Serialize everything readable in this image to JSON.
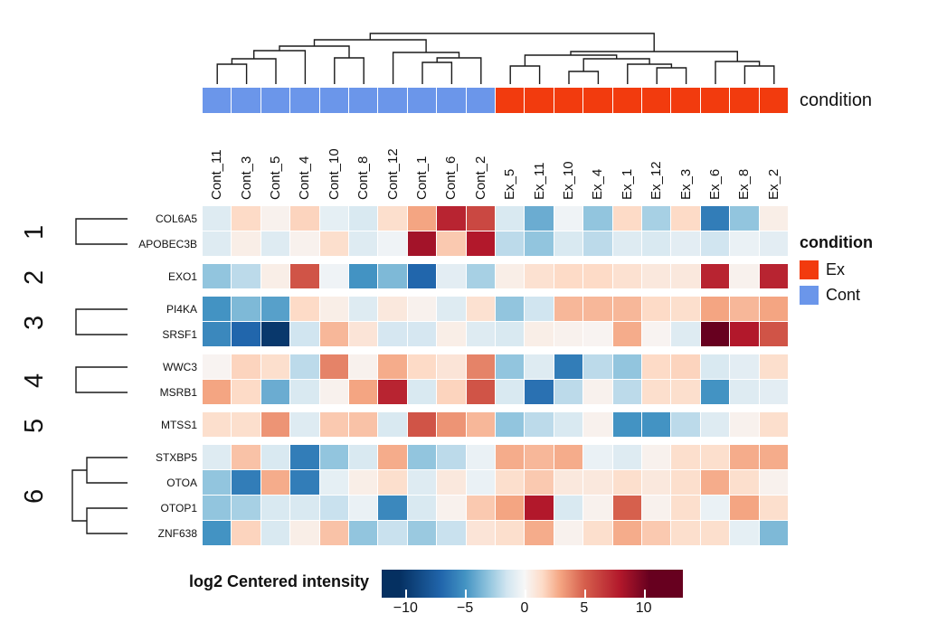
{
  "chart_data": {
    "type": "heatmap",
    "annotation_row_label": "condition",
    "columns": [
      "Cont_11",
      "Cont_3",
      "Cont_5",
      "Cont_4",
      "Cont_10",
      "Cont_8",
      "Cont_12",
      "Cont_1",
      "Cont_6",
      "Cont_2",
      "Ex_5",
      "Ex_11",
      "Ex_10",
      "Ex_4",
      "Ex_1",
      "Ex_12",
      "Ex_3",
      "Ex_6",
      "Ex_8",
      "Ex_2"
    ],
    "column_conditions": [
      "Cont",
      "Cont",
      "Cont",
      "Cont",
      "Cont",
      "Cont",
      "Cont",
      "Cont",
      "Cont",
      "Cont",
      "Ex",
      "Ex",
      "Ex",
      "Ex",
      "Ex",
      "Ex",
      "Ex",
      "Ex",
      "Ex",
      "Ex"
    ],
    "row_clusters": [
      {
        "id": "1",
        "genes": [
          "COL6A5",
          "APOBEC3B"
        ]
      },
      {
        "id": "2",
        "genes": [
          "EXO1"
        ]
      },
      {
        "id": "3",
        "genes": [
          "PI4KA",
          "SRSF1"
        ]
      },
      {
        "id": "4",
        "genes": [
          "WWC3",
          "MSRB1"
        ]
      },
      {
        "id": "5",
        "genes": [
          "MTSS1"
        ]
      },
      {
        "id": "6",
        "genes": [
          "STXBP5",
          "OTOA",
          "OTOP1",
          "ZNF638"
        ]
      }
    ],
    "values": {
      "COL6A5": [
        -1,
        1.5,
        0.3,
        1.7,
        -0.7,
        -1.2,
        1.3,
        3,
        7.5,
        6,
        -1.2,
        -4,
        -0.3,
        -3,
        1.5,
        -2.5,
        1.5,
        -6,
        -3,
        0.5
      ],
      "APOBEC3B": [
        -1,
        0.5,
        -1,
        0.3,
        1.3,
        -1,
        -0.3,
        8.5,
        2,
        8,
        -2,
        -3,
        -1.2,
        -2,
        -1,
        -1.2,
        -0.8,
        -1.5,
        -0.5,
        -0.8
      ],
      "EXO1": [
        -3,
        -2,
        0.5,
        5.5,
        -0.3,
        -5,
        -3.5,
        -7,
        -0.8,
        -2.5,
        0.5,
        1.2,
        1.5,
        1.5,
        1.2,
        0.8,
        0.8,
        7.5,
        0.3,
        7.5
      ],
      "PI4KA": [
        -5,
        -3.5,
        -4.5,
        1.5,
        0.5,
        -1,
        0.8,
        0.3,
        -1,
        1.2,
        -3,
        -1.5,
        2.5,
        2.5,
        2.5,
        1.5,
        1.3,
        3,
        2.5,
        3
      ],
      "SRSF1": [
        -5.5,
        -7,
        -10,
        -1.5,
        2.5,
        1,
        -1.3,
        -1.3,
        0.5,
        -1,
        -1.2,
        0.5,
        0.3,
        0.2,
        2.8,
        0.2,
        -1,
        10.5,
        8,
        5.5
      ],
      "WWC3": [
        0.2,
        1.7,
        1.3,
        -2,
        4,
        0.3,
        2.8,
        1.5,
        1,
        4,
        -3,
        -1,
        -6,
        -2,
        -3,
        1.5,
        1.7,
        -1.2,
        -0.8,
        1.3
      ],
      "MSRB1": [
        3,
        1.5,
        -4,
        -1.2,
        0.3,
        3,
        7.5,
        -1.2,
        1.7,
        5.5,
        -1.2,
        -6.5,
        -2,
        0.3,
        -2,
        1.3,
        1.3,
        -5,
        -1,
        -0.8
      ],
      "MTSS1": [
        1.3,
        1.3,
        3.5,
        -1,
        2,
        2.2,
        -1.2,
        5.5,
        3.5,
        2.5,
        -3,
        -2,
        -1.2,
        0.3,
        -5,
        -5,
        -2,
        -1,
        0.3,
        1.3
      ],
      "STXBP5": [
        -1,
        2.2,
        -1.2,
        -6,
        -3,
        -1.2,
        2.8,
        -3,
        -2,
        -0.5,
        2.8,
        2.5,
        2.8,
        -0.5,
        -1,
        0.3,
        1.3,
        1.3,
        2.8,
        2.8
      ],
      "OTOA": [
        -3,
        -6,
        2.8,
        -6,
        -0.7,
        0.5,
        1.3,
        -1,
        0.8,
        -0.5,
        1.3,
        2,
        0.8,
        0.8,
        1.3,
        0.8,
        1.3,
        2.8,
        1.3,
        0.3
      ],
      "OTOP1": [
        -3,
        -2.5,
        -1.2,
        -1.2,
        -1.7,
        -0.5,
        -5.5,
        -1.2,
        0.3,
        2,
        3,
        8,
        -1.2,
        0.3,
        5,
        0.3,
        1.3,
        -0.5,
        3,
        1.3
      ],
      "ZNF638": [
        -5,
        1.7,
        -1.2,
        0.5,
        2.2,
        -3,
        -1.7,
        -2.8,
        -1.7,
        1,
        1.3,
        2.8,
        0.3,
        1.3,
        2.8,
        2,
        1.3,
        1.3,
        -0.7,
        -3.5
      ]
    },
    "colormap": {
      "name": "RdBu reversed",
      "anchors": [
        [
          -10.5,
          "#053061"
        ],
        [
          -7,
          "#2166AC"
        ],
        [
          -5,
          "#4393C3"
        ],
        [
          -3,
          "#92C5DE"
        ],
        [
          -1.5,
          "#D1E5F0"
        ],
        [
          0,
          "#F7F7F7"
        ],
        [
          1.5,
          "#FDDBC7"
        ],
        [
          3,
          "#F4A582"
        ],
        [
          5,
          "#D6604D"
        ],
        [
          8,
          "#B2182B"
        ],
        [
          10.5,
          "#67001F"
        ]
      ]
    },
    "condition_colors": {
      "Ex": "#F23B0E",
      "Cont": "#6B96EA"
    },
    "legend": {
      "title": "condition",
      "entries": [
        {
          "label": "Ex",
          "color": "#F23B0E"
        },
        {
          "label": "Cont",
          "color": "#6B96EA"
        }
      ]
    },
    "colorbar": {
      "title": "log2 Centered intensity",
      "ticks": [
        -10,
        -5,
        0,
        5,
        10
      ],
      "range": [
        -12,
        13.3
      ]
    },
    "column_dendrogram": {
      "merges": [
        [
          "L0",
          "L1",
          71
        ],
        [
          "M0",
          "L2",
          65
        ],
        [
          "M1",
          "L3",
          56
        ],
        [
          "L4",
          "L5",
          64
        ],
        [
          "M2",
          "M3",
          51
        ],
        [
          "L7",
          "L8",
          69
        ],
        [
          "M5",
          "L9",
          64
        ],
        [
          "L6",
          "M6",
          58
        ],
        [
          "M4",
          "M7",
          44
        ],
        [
          "L10",
          "L11",
          73
        ],
        [
          "L12",
          "L13",
          79
        ],
        [
          "L15",
          "L16",
          75
        ],
        [
          "L14",
          "M11",
          71
        ],
        [
          "M10",
          "M12",
          65
        ],
        [
          "M9",
          "M13",
          61
        ],
        [
          "L18",
          "L19",
          73
        ],
        [
          "L17",
          "M15",
          68
        ],
        [
          "M14",
          "M16",
          57
        ],
        [
          "M8",
          "M17",
          37
        ]
      ]
    },
    "row_dendrogram": {
      "merges": [
        [
          "R0",
          "R1",
          84
        ],
        [
          "R3",
          "R4",
          84
        ],
        [
          "R5",
          "R6",
          84
        ],
        [
          "R8",
          "R9",
          96
        ],
        [
          "R10",
          "R11",
          96
        ],
        [
          "M3",
          "M4",
          80
        ]
      ]
    }
  }
}
